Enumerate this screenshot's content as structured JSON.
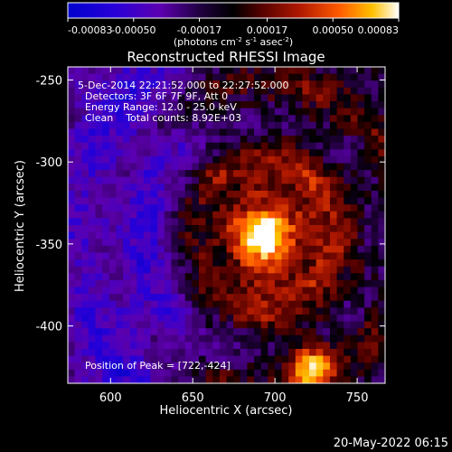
{
  "chart_data": {
    "type": "heatmap",
    "title": "Reconstructed RHESSI Image",
    "colorbar": {
      "ticks": [
        "-0.00083",
        "-0.00050",
        "-0.00017",
        "0.00017",
        "0.00050",
        "0.00083"
      ],
      "range": [
        -0.00083,
        0.00083
      ],
      "unit_label": "(photons cm",
      "unit_parts": [
        "(photons cm",
        "-2",
        " s",
        "-1",
        " asec",
        "-2",
        ")"
      ],
      "colors": [
        "#0000cc",
        "#3a00c8",
        "#6a00b8",
        "#000000",
        "#5a0000",
        "#b21a00",
        "#ff5a00",
        "#ffb400",
        "#ffff80",
        "#ffffff"
      ]
    },
    "xlabel": "Heliocentric X (arcsec)",
    "ylabel": "Heliocentric Y (arcsec)",
    "xlim": [
      574,
      767
    ],
    "ylim": [
      -435,
      -242
    ],
    "xticks": [
      600,
      650,
      700,
      750
    ],
    "yticks": [
      -250,
      -300,
      -350,
      -400
    ],
    "xtick_labels": [
      "600",
      "650",
      "700",
      "750"
    ],
    "ytick_labels": [
      "-250",
      "-300",
      "-350",
      "-400"
    ],
    "annotations": [
      "5-Dec-2014 22:21:52.000 to 22:27:52.000",
      "Detectors: 3F 6F 7F 9F, Att 0",
      "Energy Range: 12.0 - 25.0 keV",
      "Clean    Total counts: 8.92E+03"
    ],
    "peak_label": "Position of Peak = [722,-424]",
    "peak": [
      722,
      -424
    ],
    "main_source_center": [
      692,
      -345
    ],
    "timestamp": "20-May-2022 06:15"
  }
}
